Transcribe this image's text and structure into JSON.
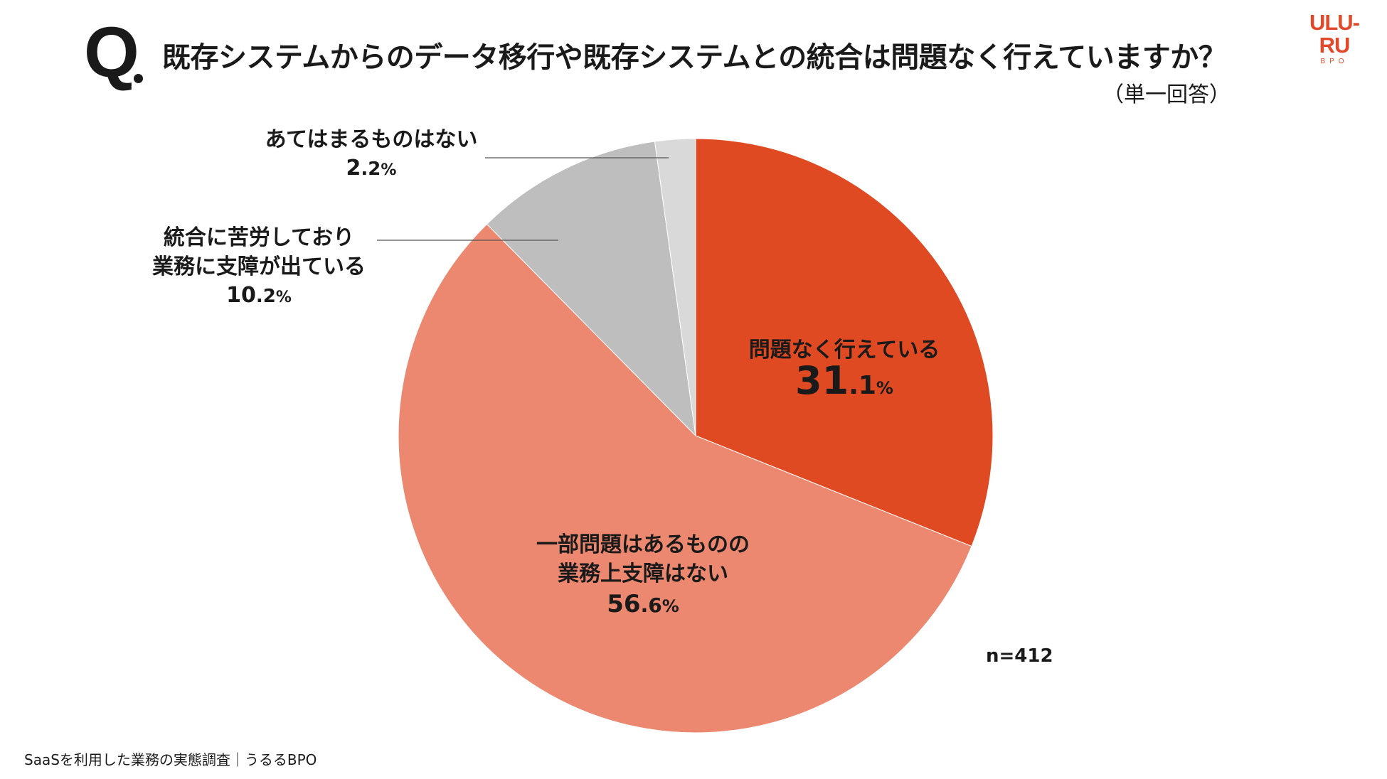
{
  "question": {
    "mark": "Q",
    "text": "既存システムからのデータ移行や既存システムとの統合は問題なく行えていますか？",
    "answer_type": "（単一回答）"
  },
  "logo": {
    "main": "ULU-RU",
    "sub": "BPO"
  },
  "chart_data": {
    "type": "pie",
    "start_angle_deg": 0,
    "direction": "clockwise",
    "slices": [
      {
        "label_lines": [
          "問題なく行えている"
        ],
        "value": 31.1,
        "int": "31",
        "dec": ".1",
        "unit": "%",
        "color": "#e04a22"
      },
      {
        "label_lines": [
          "一部問題はあるものの",
          "業務上支障はない"
        ],
        "value": 56.6,
        "int": "56",
        "dec": ".6",
        "unit": "%",
        "color": "#ec8870"
      },
      {
        "label_lines": [
          "統合に苦労しており",
          "業務に支障が出ている"
        ],
        "value": 10.2,
        "int": "10",
        "dec": ".2",
        "unit": "%",
        "color": "#bebebe"
      },
      {
        "label_lines": [
          "あてはまるものはない"
        ],
        "value": 2.2,
        "int": "2",
        "dec": ".2",
        "unit": "%",
        "color": "#d9d9d9"
      }
    ],
    "sample_size": "n=412"
  },
  "footer": "SaaSを利用した業務の実態調査｜うるるBPO"
}
